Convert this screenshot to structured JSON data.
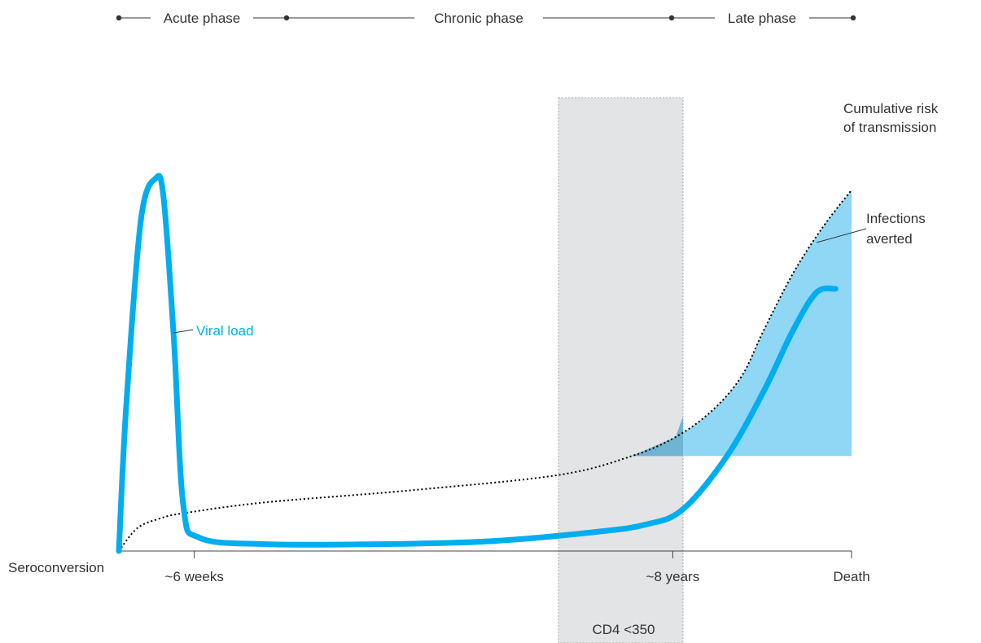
{
  "chart_data": {
    "type": "line",
    "title": "",
    "phases": [
      {
        "label": "Acute phase"
      },
      {
        "label": "Chronic phase"
      },
      {
        "label": "Late phase"
      }
    ],
    "x_ticks": [
      {
        "label": "Seroconversion",
        "t": 0
      },
      {
        "label": "~6 weeks",
        "t": 0.103
      },
      {
        "label": "~8 years",
        "t": 0.756
      },
      {
        "label": "Death",
        "t": 1.0
      }
    ],
    "band": {
      "label": "CD4 <350",
      "t_start": 0.6,
      "t_end": 0.77
    },
    "series": [
      {
        "name": "Viral load",
        "style": "solid",
        "color": "#00aeef",
        "points": [
          [
            0,
            0.0
          ],
          [
            0.01,
            0.38
          ],
          [
            0.03,
            0.87
          ],
          [
            0.05,
            0.98
          ],
          [
            0.061,
            0.93
          ],
          [
            0.075,
            0.56
          ],
          [
            0.088,
            0.12
          ],
          [
            0.11,
            0.035
          ],
          [
            0.2,
            0.018
          ],
          [
            0.35,
            0.018
          ],
          [
            0.5,
            0.025
          ],
          [
            0.65,
            0.05
          ],
          [
            0.72,
            0.07
          ],
          [
            0.77,
            0.11
          ],
          [
            0.83,
            0.25
          ],
          [
            0.88,
            0.42
          ],
          [
            0.92,
            0.58
          ],
          [
            0.952,
            0.68
          ],
          [
            0.978,
            0.69
          ]
        ]
      },
      {
        "name": "Cumulative risk of transmission",
        "style": "dotted",
        "color": "#000000",
        "points": [
          [
            0,
            0.0
          ],
          [
            0.025,
            0.06
          ],
          [
            0.055,
            0.085
          ],
          [
            0.09,
            0.1
          ],
          [
            0.2,
            0.128
          ],
          [
            0.4,
            0.16
          ],
          [
            0.6,
            0.2
          ],
          [
            0.7,
            0.25
          ],
          [
            0.76,
            0.3
          ],
          [
            0.81,
            0.37
          ],
          [
            0.85,
            0.46
          ],
          [
            0.88,
            0.58
          ],
          [
            0.92,
            0.73
          ],
          [
            0.96,
            0.85
          ],
          [
            1.0,
            0.95
          ]
        ]
      }
    ],
    "shaded_area": {
      "label": "Infections averted",
      "color": "#8fd7f5",
      "floor": 0.25,
      "t_start": 0.7
    },
    "annotations": {
      "viral_load_label": "Viral load",
      "risk_label_line1": "Cumulative risk",
      "risk_label_line2": "of transmission",
      "averted_label_line1": "Infections",
      "averted_label_line2": "averted"
    },
    "colors": {
      "band": "#e3e4e6",
      "axis": "#444444",
      "text": "#333333"
    }
  }
}
